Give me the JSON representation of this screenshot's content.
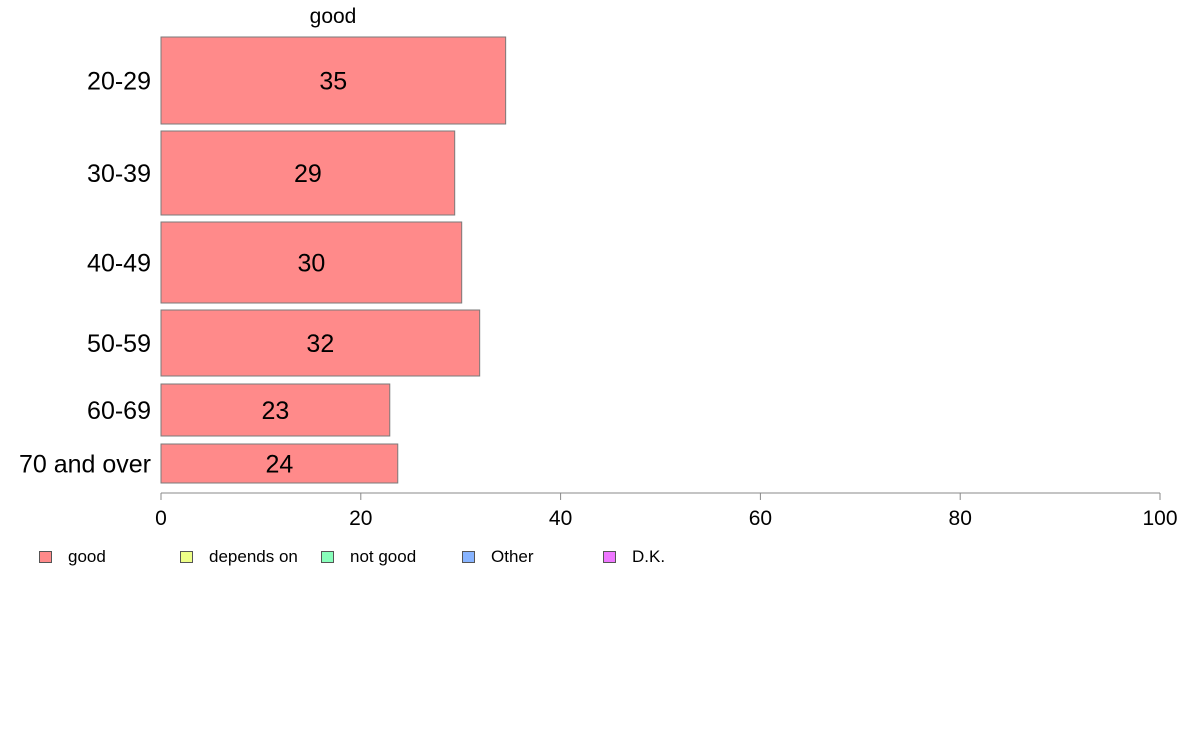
{
  "chart_data": {
    "type": "bar",
    "orientation": "horizontal",
    "title": "good",
    "categories": [
      "20-29",
      "30-39",
      "40-49",
      "50-59",
      "60-69",
      "70 and over"
    ],
    "series": [
      {
        "name": "good",
        "values": [
          35,
          29,
          30,
          32,
          23,
          24
        ]
      }
    ],
    "data_labels": [
      "35",
      "29",
      "30",
      "32",
      "23",
      "24"
    ],
    "actual_bar_lengths": [
      34.5,
      29.4,
      30.1,
      31.9,
      22.9,
      23.7
    ],
    "xlim": [
      0,
      100
    ],
    "xticks": [
      0,
      20,
      40,
      60,
      80,
      100
    ],
    "xlabel": "",
    "ylabel": "",
    "grid": false,
    "legend_position": "bottom-left",
    "legend": [
      {
        "label": "good",
        "color": "#FF8A8A"
      },
      {
        "label": "depends on",
        "color": "#EEFF88"
      },
      {
        "label": "not good",
        "color": "#88FFBB"
      },
      {
        "label": "Other",
        "color": "#88B4FF"
      },
      {
        "label": "D.K.",
        "color": "#EE77FF"
      }
    ],
    "bar_color": "#FF8A8A"
  }
}
